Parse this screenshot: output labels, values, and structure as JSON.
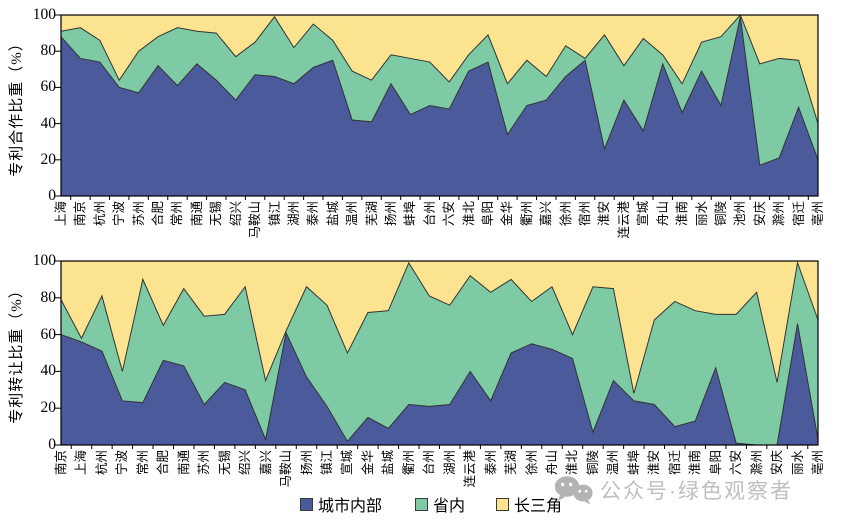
{
  "colors": {
    "within_city": "#4A5A9B",
    "within_province": "#7ECAA5",
    "yangtze_delta": "#FBE38F",
    "boundary_stroke": "#333333",
    "frame_stroke": "#000000",
    "watermark_gray": "#a6a6a6"
  },
  "legend": {
    "items": [
      {
        "label": "城市内部",
        "color": "#4A5A9B"
      },
      {
        "label": "省内",
        "color": "#7ECAA5"
      },
      {
        "label": "长三角",
        "color": "#FBE38F"
      }
    ]
  },
  "watermark": {
    "text": "公众号·绿色观察者",
    "icon": "wechat-icon"
  },
  "chart_data": [
    {
      "type": "area",
      "stacked": true,
      "ylabel": "专利合作比重（%）",
      "ylim": [
        0,
        100
      ],
      "yticks": [
        "100",
        "80",
        "60",
        "40",
        "20",
        "0"
      ],
      "grid": false,
      "legend_position": "bottom-shared",
      "categories": [
        "上海",
        "南京",
        "杭州",
        "宁波",
        "苏州",
        "合肥",
        "常州",
        "南通",
        "无锡",
        "绍兴",
        "马鞍山",
        "镇江",
        "湖州",
        "泰州",
        "盐城",
        "温州",
        "芜湖",
        "扬州",
        "蚌埠",
        "台州",
        "六安",
        "淮北",
        "阜阳",
        "金华",
        "衢州",
        "嘉兴",
        "徐州",
        "宿州",
        "淮安",
        "连云港",
        "宣城",
        "舟山",
        "淮南",
        "丽水",
        "铜陵",
        "池州",
        "安庆",
        "滁州",
        "宿迁",
        "亳州"
      ],
      "series": [
        {
          "name": "城市内部",
          "values": [
            88,
            76,
            74,
            60,
            57,
            72,
            61,
            73,
            64,
            53,
            67,
            66,
            62,
            71,
            75,
            42,
            41,
            62,
            45,
            50,
            48,
            69,
            74,
            34,
            50,
            53,
            66,
            75,
            26,
            53,
            36,
            73,
            46,
            69,
            50,
            99,
            17,
            21,
            49,
            20
          ]
        },
        {
          "name": "省内",
          "values": [
            3,
            17,
            12,
            4,
            23,
            16,
            32,
            18,
            26,
            24,
            18,
            33,
            20,
            24,
            11,
            27,
            23,
            16,
            31,
            24,
            15,
            9,
            15,
            28,
            25,
            13,
            17,
            1,
            63,
            19,
            51,
            5,
            16,
            16,
            38,
            1,
            56,
            55,
            26,
            20
          ]
        },
        {
          "name": "长三角",
          "values": [
            9,
            7,
            14,
            36,
            20,
            12,
            7,
            9,
            10,
            23,
            15,
            1,
            18,
            5,
            14,
            31,
            36,
            22,
            24,
            26,
            37,
            22,
            11,
            38,
            25,
            34,
            17,
            24,
            11,
            28,
            13,
            22,
            38,
            15,
            12,
            0,
            27,
            24,
            25,
            60
          ]
        }
      ]
    },
    {
      "type": "area",
      "stacked": true,
      "ylabel": "专利转让比重（%）",
      "ylim": [
        0,
        100
      ],
      "yticks": [
        "100",
        "80",
        "60",
        "40",
        "20",
        "0"
      ],
      "grid": false,
      "legend_position": "bottom-shared",
      "categories": [
        "南京",
        "上海",
        "杭州",
        "宁波",
        "常州",
        "合肥",
        "南通",
        "苏州",
        "无锡",
        "绍兴",
        "嘉兴",
        "马鞍山",
        "扬州",
        "镇江",
        "宣城",
        "金华",
        "盐城",
        "衢州",
        "台州",
        "湖州",
        "连云港",
        "泰州",
        "芜湖",
        "徐州",
        "舟山",
        "淮北",
        "铜陵",
        "温州",
        "蚌埠",
        "淮安",
        "宿迁",
        "淮南",
        "阜阳",
        "六安",
        "滁州",
        "安庆",
        "丽水",
        "亳州"
      ],
      "series": [
        {
          "name": "城市内部",
          "values": [
            60,
            56,
            51,
            24,
            23,
            46,
            43,
            22,
            34,
            30,
            3,
            61,
            37,
            21,
            2,
            15,
            9,
            22,
            21,
            22,
            40,
            24,
            50,
            55,
            52,
            47,
            7,
            35,
            24,
            22,
            10,
            13,
            42,
            1,
            0,
            0,
            66,
            3
          ]
        },
        {
          "name": "省内",
          "values": [
            19,
            2,
            30,
            16,
            67,
            19,
            42,
            48,
            37,
            56,
            32,
            1,
            49,
            55,
            48,
            57,
            64,
            77,
            60,
            54,
            52,
            59,
            40,
            23,
            34,
            13,
            79,
            50,
            4,
            46,
            68,
            60,
            29,
            70,
            83,
            34,
            33,
            65
          ]
        },
        {
          "name": "长三角",
          "values": [
            21,
            42,
            19,
            60,
            10,
            35,
            15,
            30,
            29,
            14,
            65,
            38,
            14,
            24,
            50,
            28,
            27,
            1,
            19,
            24,
            8,
            17,
            10,
            22,
            14,
            40,
            14,
            15,
            72,
            32,
            22,
            27,
            29,
            29,
            17,
            66,
            1,
            32
          ]
        }
      ]
    }
  ]
}
